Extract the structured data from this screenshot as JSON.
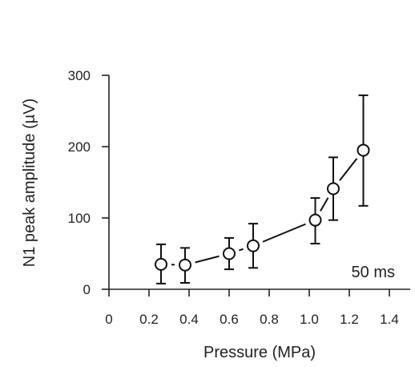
{
  "chart_data": {
    "type": "scatter",
    "xlabel": "Pressure (MPa)",
    "ylabel": "N1 peak amplitude (µV)",
    "xlim": [
      0,
      1.4
    ],
    "ylim": [
      0,
      300
    ],
    "x_ticks": [
      "0",
      "0.2",
      "0.4",
      "0.6",
      "0.8",
      "1.0",
      "1.2",
      "1.4"
    ],
    "y_ticks": [
      "0",
      "100",
      "200",
      "300"
    ],
    "annotation": "50 ms",
    "grid": false,
    "series": [
      {
        "x": [
          0.26,
          0.38,
          0.6,
          0.72,
          1.03,
          1.12,
          1.27
        ],
        "y": [
          35,
          34,
          50,
          61,
          97,
          141,
          195
        ],
        "error_low": [
          8,
          9,
          28,
          30,
          64,
          97,
          117
        ],
        "error_high": [
          63,
          58,
          72,
          92,
          128,
          185,
          272
        ]
      }
    ]
  }
}
